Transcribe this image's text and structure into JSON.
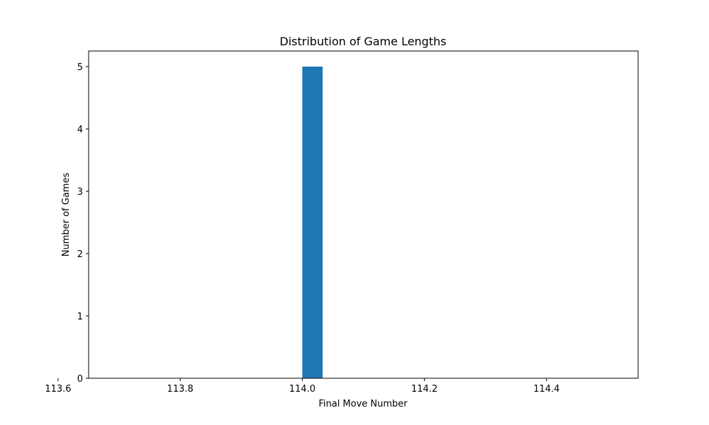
{
  "chart_data": {
    "type": "bar",
    "title": "Distribution of Game Lengths",
    "xlabel": "Final Move Number",
    "ylabel": "Number of Games",
    "xlim": [
      113.65,
      114.55
    ],
    "ylim": [
      0,
      5.25
    ],
    "x_ticks": [
      "113.6",
      "113.8",
      "114.0",
      "114.2",
      "114.4"
    ],
    "x_tick_values": [
      113.6,
      113.8,
      114.0,
      114.2,
      114.4
    ],
    "y_ticks": [
      "0",
      "1",
      "2",
      "3",
      "4",
      "5"
    ],
    "y_tick_values": [
      0,
      1,
      2,
      3,
      4,
      5
    ],
    "bins": [
      {
        "x_start": 114.0,
        "x_end": 114.0333,
        "count": 5
      }
    ],
    "bar_color": "#1f77b4",
    "grid": false,
    "legend": "none"
  }
}
